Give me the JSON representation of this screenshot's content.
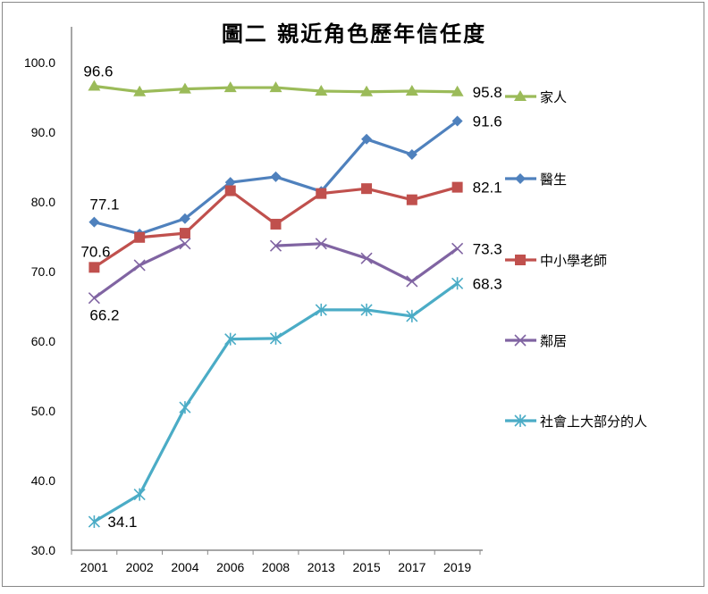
{
  "chart_data": {
    "type": "line",
    "title": "圖二 親近角色歷年信任度",
    "xlabel": "",
    "ylabel": "",
    "categories": [
      "2001",
      "2002",
      "2004",
      "2006",
      "2008",
      "2013",
      "2015",
      "2017",
      "2019"
    ],
    "ylim": [
      30,
      100
    ],
    "yticks": [
      "30.0",
      "40.0",
      "50.0",
      "60.0",
      "70.0",
      "80.0",
      "90.0",
      "100.0"
    ],
    "grid": false,
    "legend": "right",
    "series": [
      {
        "name": "家人",
        "color": "#9BBB59",
        "marker": "triangle",
        "values": [
          96.6,
          95.8,
          96.2,
          96.4,
          96.4,
          95.9,
          95.8,
          95.9,
          95.8
        ],
        "labels": {
          "first": "96.6",
          "last": "95.8"
        }
      },
      {
        "name": "醫生",
        "color": "#4F81BD",
        "marker": "diamond",
        "values": [
          77.1,
          75.4,
          77.6,
          82.8,
          83.6,
          81.5,
          89.0,
          86.8,
          91.6
        ],
        "labels": {
          "first": "77.1",
          "last": "91.6"
        }
      },
      {
        "name": "中小學老師",
        "color": "#C0504D",
        "marker": "square",
        "values": [
          70.6,
          74.9,
          75.5,
          81.6,
          76.8,
          81.2,
          81.9,
          80.3,
          82.1
        ],
        "labels": {
          "first": "70.6",
          "last": "82.1"
        }
      },
      {
        "name": "鄰居",
        "color": "#8064A2",
        "marker": "x",
        "values": [
          66.2,
          70.9,
          74.0,
          null,
          73.7,
          74.0,
          71.9,
          68.6,
          73.3
        ],
        "labels": {
          "first": "66.2",
          "last": "73.3"
        }
      },
      {
        "name": "社會上大部分的人",
        "color": "#4BACC6",
        "marker": "star",
        "values": [
          34.1,
          38.0,
          50.5,
          60.3,
          60.4,
          64.5,
          64.5,
          63.6,
          68.3
        ],
        "labels": {
          "first": "34.1",
          "last": "68.3"
        }
      }
    ]
  }
}
